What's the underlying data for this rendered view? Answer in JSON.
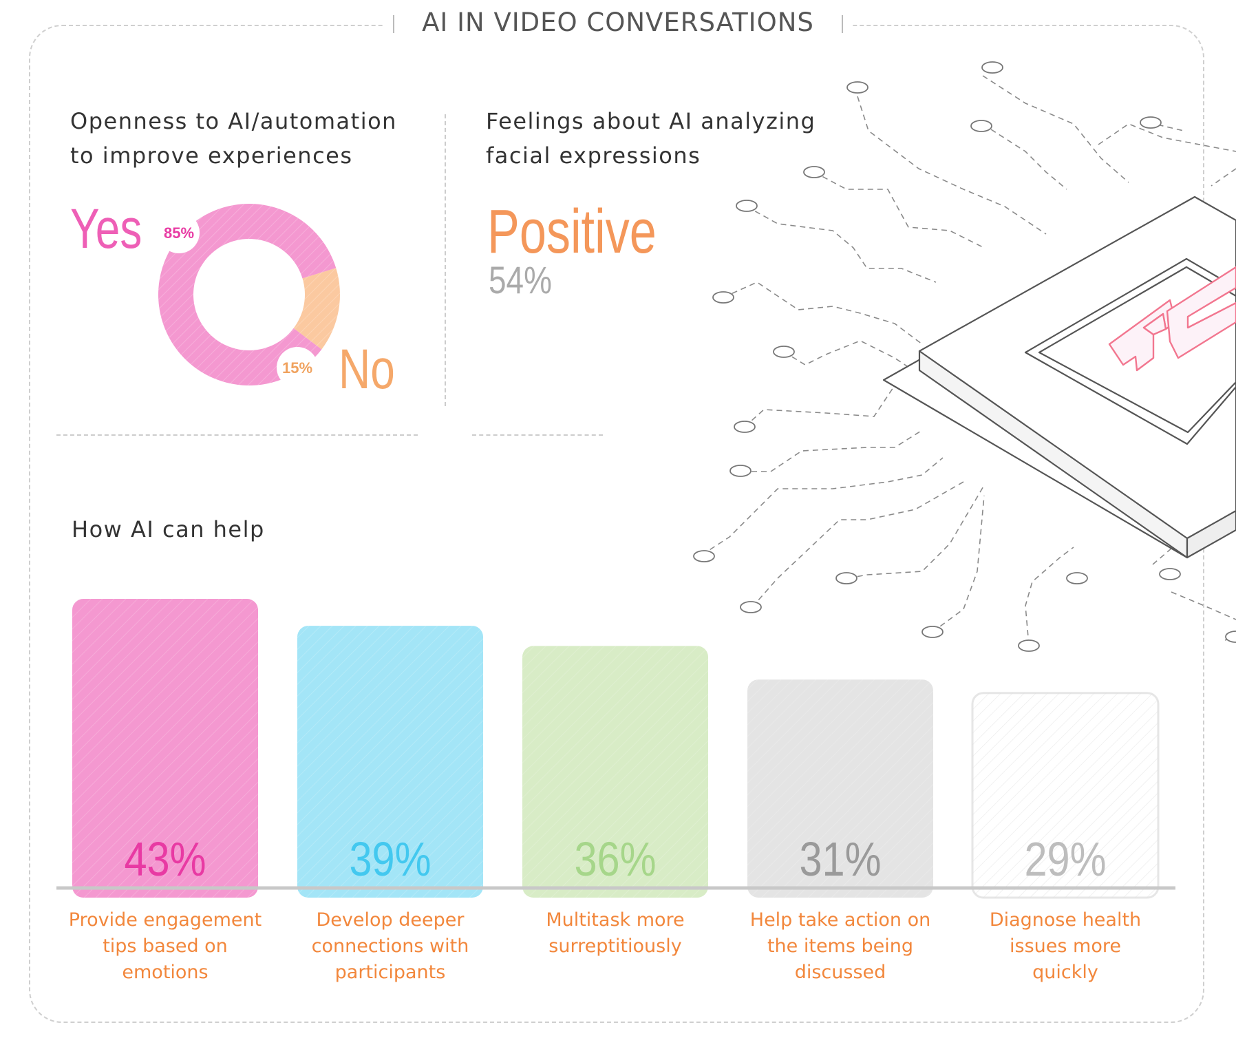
{
  "title": "AI IN VIDEO CONVERSATIONS",
  "openness": {
    "heading": "Openness to AI/automation to improve experiences",
    "yes_label": "Yes",
    "no_label": "No"
  },
  "feelings": {
    "heading": "Feelings about AI analyzing facial expressions",
    "sentiment": "Positive",
    "value_label": "54%"
  },
  "help": {
    "heading": "How AI can help"
  },
  "illustration": {
    "chip_text": "AI"
  },
  "colors": {
    "pink": "#f498d0",
    "pink_text": "#e83aa3",
    "peach": "#fbc9a0",
    "blue": "#a3e5f7",
    "blue_text": "#43c8ef",
    "green": "#d8ecc6",
    "green_text": "#a6d68a",
    "gray": "#e4e4e4",
    "gray_text": "#9a9a9a",
    "white_bar": "#ffffff",
    "white_bar_text": "#bdbdbd",
    "caption": "#f2873c"
  },
  "chart_data": [
    {
      "type": "pie",
      "title": "Openness to AI/automation to improve experiences",
      "categories": [
        "Yes",
        "No"
      ],
      "values": [
        85,
        15
      ],
      "labels": [
        "85%",
        "15%"
      ]
    },
    {
      "type": "bar",
      "title": "How AI can help",
      "categories": [
        "Provide engagement tips based on emotions",
        "Develop deeper connections with participants",
        "Multitask more surreptitiously",
        "Help take action on the items being discussed",
        "Diagnose health issues more quickly"
      ],
      "captions": [
        [
          "Provide engagement",
          "tips based on",
          "emotions"
        ],
        [
          "Develop deeper",
          "connections with",
          "participants"
        ],
        [
          "Multitask more",
          "surreptitiously"
        ],
        [
          "Help take action on",
          "the items being",
          "discussed"
        ],
        [
          "Diagnose health",
          "issues more",
          "quickly"
        ]
      ],
      "values": [
        43,
        39,
        36,
        31,
        29
      ],
      "labels": [
        "43%",
        "39%",
        "36%",
        "31%",
        "29%"
      ],
      "ylim": [
        0,
        43
      ]
    }
  ]
}
